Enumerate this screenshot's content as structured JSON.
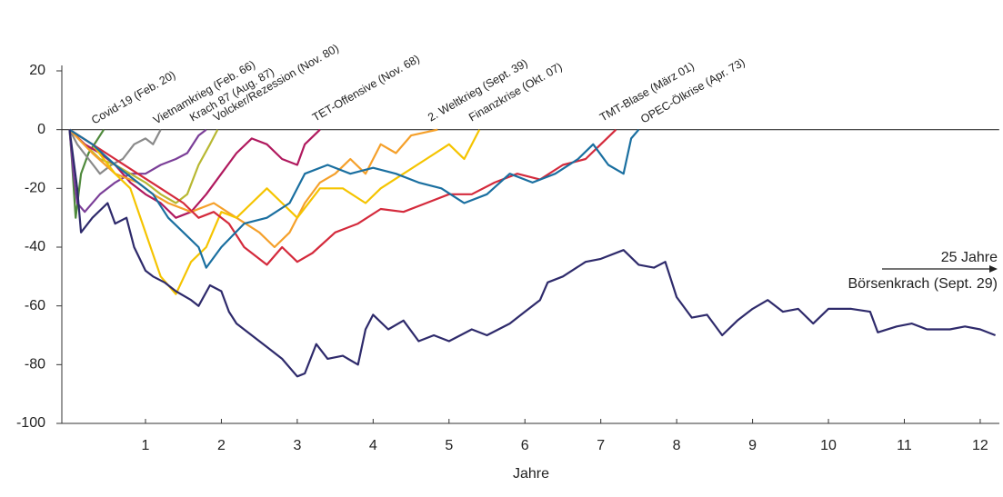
{
  "chart_data": {
    "type": "line",
    "x_label": "Jahre",
    "annotation": "25 Jahre",
    "xlim": [
      -0.1,
      12.25
    ],
    "xticks": [
      1,
      2,
      3,
      4,
      5,
      6,
      7,
      8,
      9,
      10,
      11,
      12
    ],
    "ylim": [
      -100,
      20
    ],
    "yticks": [
      20,
      0,
      -20,
      -40,
      -60,
      -80,
      -100
    ],
    "series": [
      {
        "name": "Covid-19 (Feb. 20)",
        "color": "#4f8a3c",
        "x": [
          0,
          0.03,
          0.08,
          0.15,
          0.25,
          0.35,
          0.45
        ],
        "values": [
          0,
          -10,
          -30,
          -15,
          -8,
          -4,
          0
        ]
      },
      {
        "name": "Vietnamkrieg (Feb. 66)",
        "color": "#8a8a8a",
        "x": [
          0,
          0.1,
          0.25,
          0.4,
          0.55,
          0.7,
          0.85,
          1.0,
          1.1,
          1.2
        ],
        "values": [
          0,
          -5,
          -10,
          -15,
          -12,
          -10,
          -5,
          -3,
          -5,
          0
        ]
      },
      {
        "name": "Krach 87 (Aug. 87)",
        "color": "#7b3f98",
        "x": [
          0,
          0.05,
          0.1,
          0.2,
          0.4,
          0.6,
          0.8,
          1.0,
          1.2,
          1.4,
          1.55,
          1.7,
          1.8
        ],
        "values": [
          0,
          -15,
          -25,
          -28,
          -22,
          -18,
          -15,
          -15,
          -12,
          -10,
          -8,
          -2,
          0
        ]
      },
      {
        "name": "Volcker/Rezession (Nov. 80)",
        "color": "#b8b832",
        "x": [
          0,
          0.2,
          0.4,
          0.6,
          0.8,
          1.0,
          1.2,
          1.4,
          1.55,
          1.7,
          1.85,
          1.95
        ],
        "values": [
          0,
          -5,
          -10,
          -12,
          -15,
          -18,
          -22,
          -25,
          -22,
          -12,
          -5,
          0
        ]
      },
      {
        "name": "TET-Offensive (Nov. 68)",
        "color": "#b0195e",
        "x": [
          0,
          0.2,
          0.4,
          0.6,
          0.8,
          1.0,
          1.2,
          1.4,
          1.6,
          1.8,
          2.0,
          2.2,
          2.4,
          2.6,
          2.8,
          3.0,
          3.1,
          3.3
        ],
        "values": [
          0,
          -5,
          -8,
          -12,
          -18,
          -22,
          -25,
          -30,
          -28,
          -22,
          -15,
          -8,
          -3,
          -5,
          -10,
          -12,
          -5,
          0
        ]
      },
      {
        "name": "2. Weltkrieg (Sept. 39)",
        "color": "#f5a02a",
        "x": [
          0,
          0.3,
          0.6,
          0.9,
          1.1,
          1.3,
          1.6,
          1.9,
          2.2,
          2.5,
          2.7,
          2.9,
          3.1,
          3.3,
          3.5,
          3.7,
          3.9,
          4.1,
          4.3,
          4.5,
          4.85
        ],
        "values": [
          0,
          -8,
          -15,
          -18,
          -22,
          -25,
          -28,
          -25,
          -30,
          -35,
          -40,
          -35,
          -25,
          -18,
          -15,
          -10,
          -15,
          -5,
          -8,
          -2,
          0
        ]
      },
      {
        "name": "Finanzkrise (Okt. 07)",
        "color": "#f5c400",
        "x": [
          0,
          0.3,
          0.6,
          0.8,
          1.0,
          1.2,
          1.4,
          1.6,
          1.8,
          2.0,
          2.2,
          2.4,
          2.6,
          2.8,
          3.0,
          3.3,
          3.6,
          3.9,
          4.1,
          4.4,
          4.7,
          5.0,
          5.2,
          5.4
        ],
        "values": [
          0,
          -5,
          -15,
          -20,
          -35,
          -50,
          -56,
          -45,
          -40,
          -28,
          -30,
          -25,
          -20,
          -25,
          -30,
          -20,
          -20,
          -25,
          -20,
          -15,
          -10,
          -5,
          -10,
          0
        ]
      },
      {
        "name": "TMT-Blase (März 01)",
        "color": "#d42a3c",
        "x": [
          0,
          0.3,
          0.6,
          0.9,
          1.2,
          1.5,
          1.7,
          1.9,
          2.1,
          2.3,
          2.6,
          2.8,
          3.0,
          3.2,
          3.5,
          3.8,
          4.1,
          4.4,
          4.7,
          5.0,
          5.3,
          5.6,
          5.9,
          6.2,
          6.5,
          6.8,
          7.0,
          7.2
        ],
        "values": [
          0,
          -5,
          -10,
          -15,
          -20,
          -25,
          -30,
          -28,
          -32,
          -40,
          -46,
          -40,
          -45,
          -42,
          -35,
          -32,
          -27,
          -28,
          -25,
          -22,
          -22,
          -18,
          -15,
          -17,
          -12,
          -10,
          -5,
          0
        ]
      },
      {
        "name": "OPEC-Ölkrise (Apr. 73)",
        "color": "#1a6fa0",
        "x": [
          0,
          0.3,
          0.6,
          0.9,
          1.1,
          1.3,
          1.5,
          1.7,
          1.8,
          2.0,
          2.3,
          2.6,
          2.9,
          3.1,
          3.4,
          3.7,
          4.0,
          4.3,
          4.6,
          4.9,
          5.2,
          5.5,
          5.8,
          6.1,
          6.4,
          6.7,
          6.9,
          7.1,
          7.3,
          7.4,
          7.5
        ],
        "values": [
          0,
          -5,
          -12,
          -18,
          -22,
          -30,
          -35,
          -40,
          -47,
          -40,
          -32,
          -30,
          -25,
          -15,
          -12,
          -15,
          -13,
          -15,
          -18,
          -20,
          -25,
          -22,
          -15,
          -18,
          -15,
          -10,
          -5,
          -12,
          -15,
          -3,
          0
        ]
      },
      {
        "name": "Börsenkrach (Sept. 29)",
        "color": "#2e2a6b",
        "x": [
          0,
          0.1,
          0.15,
          0.3,
          0.5,
          0.6,
          0.75,
          0.85,
          1.0,
          1.1,
          1.25,
          1.4,
          1.6,
          1.7,
          1.85,
          2.0,
          2.1,
          2.2,
          2.4,
          2.6,
          2.8,
          3.0,
          3.1,
          3.25,
          3.4,
          3.6,
          3.8,
          3.9,
          4.0,
          4.2,
          4.4,
          4.6,
          4.8,
          5.0,
          5.3,
          5.5,
          5.8,
          6.0,
          6.2,
          6.3,
          6.5,
          6.8,
          7.0,
          7.3,
          7.5,
          7.7,
          7.85,
          8.0,
          8.2,
          8.4,
          8.6,
          8.8,
          9.0,
          9.2,
          9.4,
          9.6,
          9.8,
          10.0,
          10.3,
          10.55,
          10.65,
          10.9,
          11.1,
          11.3,
          11.6,
          11.8,
          12.0,
          12.2
        ],
        "values": [
          0,
          -20,
          -35,
          -30,
          -25,
          -32,
          -30,
          -40,
          -48,
          -50,
          -52,
          -55,
          -58,
          -60,
          -53,
          -55,
          -62,
          -66,
          -70,
          -74,
          -78,
          -84,
          -83,
          -73,
          -78,
          -77,
          -80,
          -68,
          -63,
          -68,
          -65,
          -72,
          -70,
          -72,
          -68,
          -70,
          -66,
          -62,
          -58,
          -52,
          -50,
          -45,
          -44,
          -41,
          -46,
          -47,
          -45,
          -57,
          -64,
          -63,
          -70,
          -65,
          -61,
          -58,
          -62,
          -61,
          -66,
          -61,
          -61,
          -62,
          -69,
          -67,
          -66,
          -68,
          -68,
          -67,
          -68,
          -70
        ]
      }
    ]
  }
}
